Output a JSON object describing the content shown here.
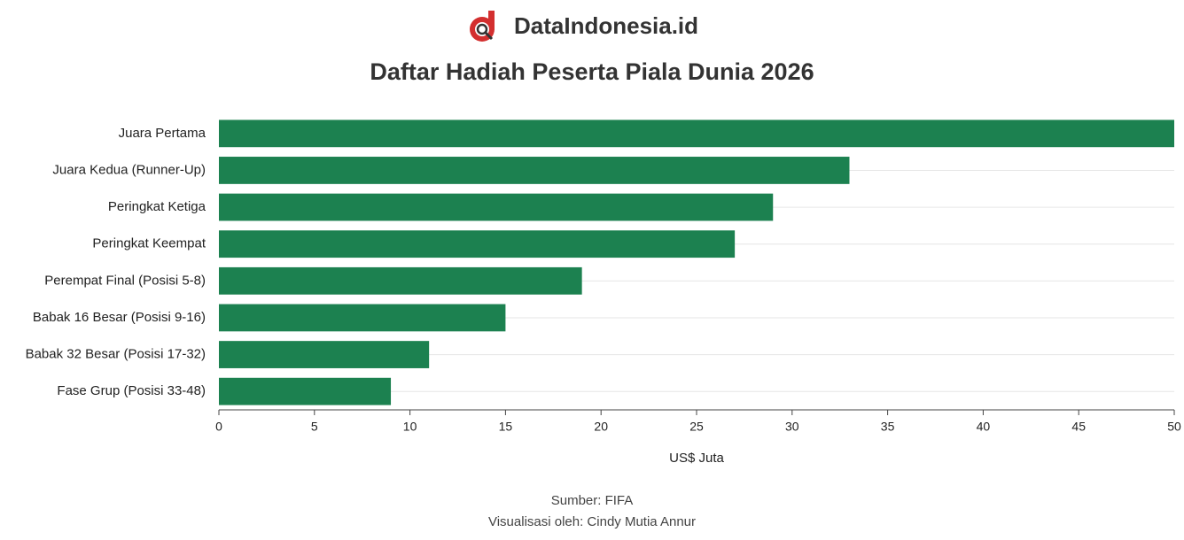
{
  "brand": "DataIndonesia.id",
  "chart_data": {
    "type": "hbar",
    "title": "Daftar Hadiah Peserta Piala Dunia 2026",
    "categories": [
      "Juara Pertama",
      "Juara Kedua (Runner-Up)",
      "Peringkat Ketiga",
      "Peringkat Keempat",
      "Perempat Final (Posisi 5-8)",
      "Babak 16 Besar (Posisi 9-16)",
      "Babak 32 Besar (Posisi 17-32)",
      "Fase Grup (Posisi 33-48)"
    ],
    "values": [
      50,
      33,
      29,
      27,
      19,
      15,
      11,
      9
    ],
    "color": "#1c8150",
    "xlim": [
      0,
      50
    ],
    "xticks": [
      0,
      5,
      10,
      15,
      20,
      25,
      30,
      35,
      40,
      45,
      50
    ],
    "xlabel": "US$ Juta",
    "source": "Sumber: FIFA",
    "credit": "Visualisasi oleh: Cindy Mutia Annur"
  }
}
